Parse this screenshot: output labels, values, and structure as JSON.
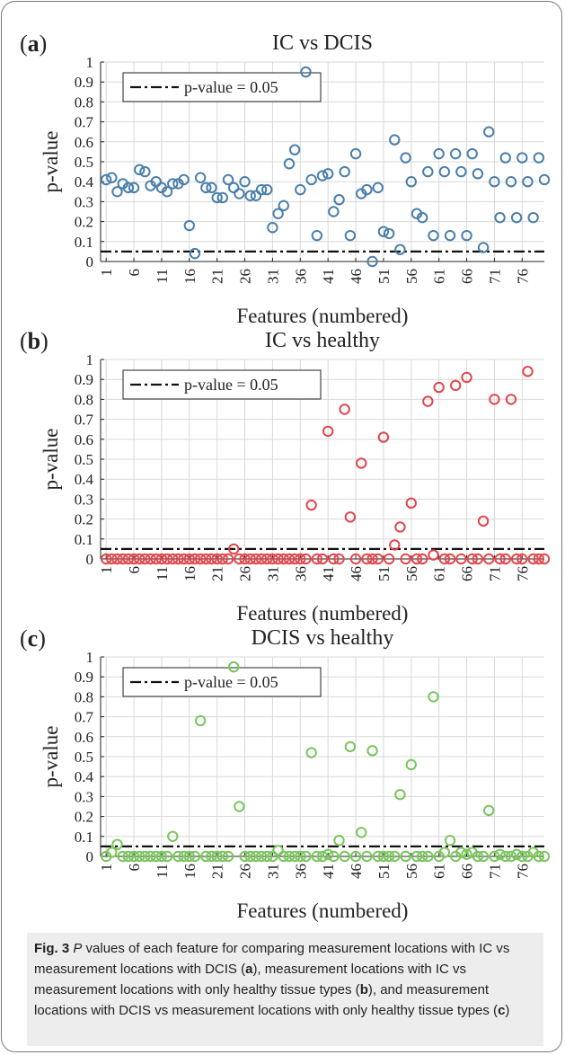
{
  "chart_data": [
    {
      "type": "scatter",
      "panel_label": "a",
      "title": "IC vs DCIS",
      "xlabel": "Features (numbered)",
      "ylabel": "p-value",
      "xlim": [
        0,
        80
      ],
      "ylim": [
        0,
        1
      ],
      "xticks": [
        "1",
        "6",
        "11",
        "16",
        "21",
        "26",
        "31",
        "36",
        "41",
        "46",
        "51",
        "56",
        "61",
        "66",
        "71",
        "76"
      ],
      "yticks": [
        "0",
        "0.1",
        "0.2",
        "0.3",
        "0.4",
        "0.5",
        "0.6",
        "0.7",
        "0.8",
        "0.9",
        "1"
      ],
      "grid": true,
      "legend": "top-left",
      "legend_label": "p-value = 0.05",
      "threshold": 0.05,
      "color": "#4a7fab",
      "x": [
        1,
        2,
        3,
        4,
        5,
        6,
        7,
        8,
        9,
        10,
        11,
        12,
        13,
        14,
        15,
        16,
        17,
        18,
        19,
        20,
        21,
        22,
        23,
        24,
        25,
        26,
        27,
        28,
        29,
        30,
        31,
        32,
        33,
        34,
        35,
        36,
        37,
        38,
        39,
        40,
        41,
        42,
        43,
        44,
        45,
        46,
        47,
        48,
        49,
        50,
        51,
        52,
        53,
        54,
        55,
        56,
        57,
        58,
        59,
        60,
        61,
        62,
        63,
        64,
        65,
        66,
        67,
        68,
        69,
        70,
        71,
        72,
        73,
        74,
        75,
        76,
        77,
        78,
        79,
        80
      ],
      "y": [
        0.41,
        0.42,
        0.35,
        0.39,
        0.37,
        0.37,
        0.46,
        0.45,
        0.38,
        0.4,
        0.37,
        0.35,
        0.39,
        0.39,
        0.41,
        0.18,
        0.04,
        0.42,
        0.37,
        0.37,
        0.32,
        0.32,
        0.41,
        0.37,
        0.34,
        0.4,
        0.33,
        0.33,
        0.36,
        0.36,
        0.17,
        0.24,
        0.28,
        0.49,
        0.56,
        0.36,
        0.95,
        0.41,
        0.13,
        0.43,
        0.44,
        0.25,
        0.31,
        0.45,
        0.13,
        0.54,
        0.34,
        0.36,
        0.0,
        0.37,
        0.15,
        0.14,
        0.61,
        0.06,
        0.52,
        0.4,
        0.24,
        0.22,
        0.45,
        0.13,
        0.54,
        0.45,
        0.13,
        0.54,
        0.45,
        0.13,
        0.54,
        0.44,
        0.07,
        0.65,
        0.4,
        0.22,
        0.52,
        0.4,
        0.22,
        0.52,
        0.4,
        0.22,
        0.52,
        0.41
      ]
    },
    {
      "type": "scatter",
      "panel_label": "b",
      "title": "IC vs healthy",
      "xlabel": "Features (numbered)",
      "ylabel": "p-value",
      "xlim": [
        0,
        80
      ],
      "ylim": [
        0,
        1
      ],
      "xticks": [
        "1",
        "6",
        "11",
        "16",
        "21",
        "26",
        "31",
        "36",
        "41",
        "46",
        "51",
        "56",
        "61",
        "66",
        "71",
        "76"
      ],
      "yticks": [
        "0",
        "0.1",
        "0.2",
        "0.3",
        "0.4",
        "0.5",
        "0.6",
        "0.7",
        "0.8",
        "0.9",
        "1"
      ],
      "grid": true,
      "legend": "top-left",
      "legend_label": "p-value = 0.05",
      "threshold": 0.05,
      "color": "#e0474c",
      "x": [
        1,
        2,
        3,
        4,
        5,
        6,
        7,
        8,
        9,
        10,
        11,
        12,
        13,
        14,
        15,
        16,
        17,
        18,
        19,
        20,
        21,
        22,
        23,
        24,
        25,
        26,
        27,
        28,
        29,
        30,
        31,
        32,
        33,
        34,
        35,
        36,
        37,
        38,
        39,
        40,
        41,
        42,
        43,
        44,
        45,
        46,
        47,
        48,
        49,
        50,
        51,
        52,
        53,
        54,
        55,
        56,
        57,
        58,
        59,
        60,
        61,
        62,
        63,
        64,
        65,
        66,
        67,
        68,
        69,
        70,
        71,
        72,
        73,
        74,
        75,
        76,
        77,
        78,
        79,
        80
      ],
      "y": [
        0,
        0,
        0,
        0,
        0,
        0,
        0,
        0,
        0,
        0,
        0,
        0,
        0,
        0,
        0,
        0,
        0,
        0,
        0,
        0,
        0,
        0,
        0,
        0.05,
        0,
        0,
        0,
        0,
        0,
        0,
        0,
        0,
        0,
        0,
        0,
        0,
        0,
        0.27,
        0,
        0,
        0.64,
        0,
        0,
        0.75,
        0.21,
        0,
        0.48,
        0,
        0,
        0,
        0.61,
        0,
        0.07,
        0.16,
        0,
        0.28,
        0,
        0,
        0.79,
        0.02,
        0.86,
        0,
        0,
        0.87,
        0,
        0.91,
        0,
        0,
        0.19,
        0,
        0.8,
        0,
        0,
        0.8,
        0,
        0,
        0.94,
        0,
        0,
        0
      ]
    },
    {
      "type": "scatter",
      "panel_label": "c",
      "title": "DCIS vs healthy",
      "xlabel": "Features (numbered)",
      "ylabel": "p-value",
      "xlim": [
        0,
        80
      ],
      "ylim": [
        0,
        1
      ],
      "xticks": [
        "1",
        "6",
        "11",
        "16",
        "21",
        "26",
        "31",
        "36",
        "41",
        "46",
        "51",
        "56",
        "61",
        "66",
        "71",
        "76"
      ],
      "yticks": [
        "0",
        "0.1",
        "0.2",
        "0.3",
        "0.4",
        "0.5",
        "0.6",
        "0.7",
        "0.8",
        "0.9",
        "1"
      ],
      "grid": true,
      "legend": "top-left",
      "legend_label": "p-value = 0.05",
      "threshold": 0.05,
      "color": "#7ac55e",
      "x": [
        1,
        2,
        3,
        4,
        5,
        6,
        7,
        8,
        9,
        10,
        11,
        12,
        13,
        14,
        15,
        16,
        17,
        18,
        19,
        20,
        21,
        22,
        23,
        24,
        25,
        26,
        27,
        28,
        29,
        30,
        31,
        32,
        33,
        34,
        35,
        36,
        37,
        38,
        39,
        40,
        41,
        42,
        43,
        44,
        45,
        46,
        47,
        48,
        49,
        50,
        51,
        52,
        53,
        54,
        55,
        56,
        57,
        58,
        59,
        60,
        61,
        62,
        63,
        64,
        65,
        66,
        67,
        68,
        69,
        70,
        71,
        72,
        73,
        74,
        75,
        76,
        77,
        78,
        79,
        80
      ],
      "y": [
        0,
        0.02,
        0.06,
        0,
        0,
        0,
        0,
        0,
        0,
        0,
        0,
        0,
        0.1,
        0,
        0,
        0,
        0,
        0.68,
        0,
        0,
        0,
        0,
        0,
        0.95,
        0.25,
        0,
        0,
        0,
        0,
        0,
        0,
        0.03,
        0,
        0,
        0,
        0,
        0,
        0.52,
        0,
        0,
        0.01,
        0,
        0.08,
        0,
        0.55,
        0,
        0.12,
        0,
        0.53,
        0,
        0,
        0,
        0,
        0.31,
        0,
        0.46,
        0,
        0,
        0,
        0.8,
        0,
        0.02,
        0.08,
        0,
        0.02,
        0.01,
        0.02,
        0,
        0,
        0.23,
        0,
        0.01,
        0,
        0,
        0.01,
        0,
        0,
        0.02,
        0,
        0
      ]
    }
  ],
  "caption": {
    "fig_label": "Fig. 3",
    "p_letter": "P",
    "text_1": " values of each feature for comparing measurement locations with IC vs measurement locations with DCIS (",
    "ref_a": "a",
    "text_2": "), measurement locations with IC vs measurement locations with only healthy tissue types (",
    "ref_b": "b",
    "text_3": "), and measurement locations with DCIS vs measurement locations with only healthy tissue types (",
    "ref_c": "c",
    "text_4": ")"
  }
}
